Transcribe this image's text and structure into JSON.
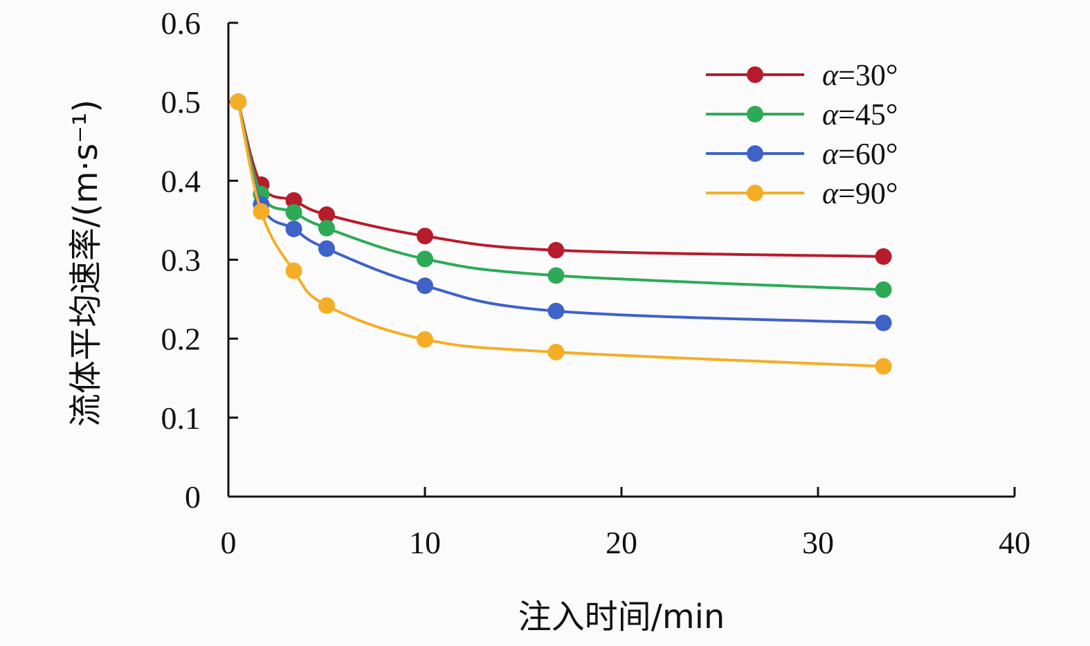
{
  "chart_data": {
    "type": "line",
    "xlabel": "注入时间/min",
    "ylabel": "流体平均速率/(m·s⁻¹)",
    "xlim": [
      0,
      40
    ],
    "ylim": [
      0,
      0.6
    ],
    "x_ticks": [
      "0",
      "10",
      "20",
      "30",
      "40"
    ],
    "y_ticks": [
      "0",
      "0.1",
      "0.2",
      "0.3",
      "0.4",
      "0.5",
      "0.6"
    ],
    "x_tick_values": [
      0,
      10,
      20,
      30,
      40
    ],
    "y_tick_values": [
      0,
      0.1,
      0.2,
      0.3,
      0.4,
      0.5,
      0.6
    ],
    "grid": false,
    "legend": {
      "placement": "top-right"
    },
    "series": [
      {
        "name": "α=30°",
        "color": "#b71c2c",
        "x": [
          0.5,
          1.67,
          3.33,
          5,
          10,
          16.67,
          33.33
        ],
        "values": [
          0.5,
          0.395,
          0.375,
          0.357,
          0.33,
          0.312,
          0.304
        ]
      },
      {
        "name": "α=45°",
        "color": "#2daa57",
        "x": [
          0.5,
          1.67,
          3.33,
          5,
          10,
          16.67,
          33.33
        ],
        "values": [
          0.5,
          0.383,
          0.36,
          0.34,
          0.301,
          0.28,
          0.262
        ]
      },
      {
        "name": "α=60°",
        "color": "#3f62c8",
        "x": [
          0.5,
          1.67,
          3.33,
          5,
          10,
          16.67,
          33.33
        ],
        "values": [
          0.5,
          0.37,
          0.339,
          0.314,
          0.267,
          0.235,
          0.22
        ]
      },
      {
        "name": "α=90°",
        "color": "#f6ad26",
        "x": [
          0.5,
          1.67,
          3.33,
          5,
          10,
          16.67,
          33.33
        ],
        "values": [
          0.5,
          0.361,
          0.286,
          0.242,
          0.199,
          0.183,
          0.165
        ]
      }
    ]
  }
}
